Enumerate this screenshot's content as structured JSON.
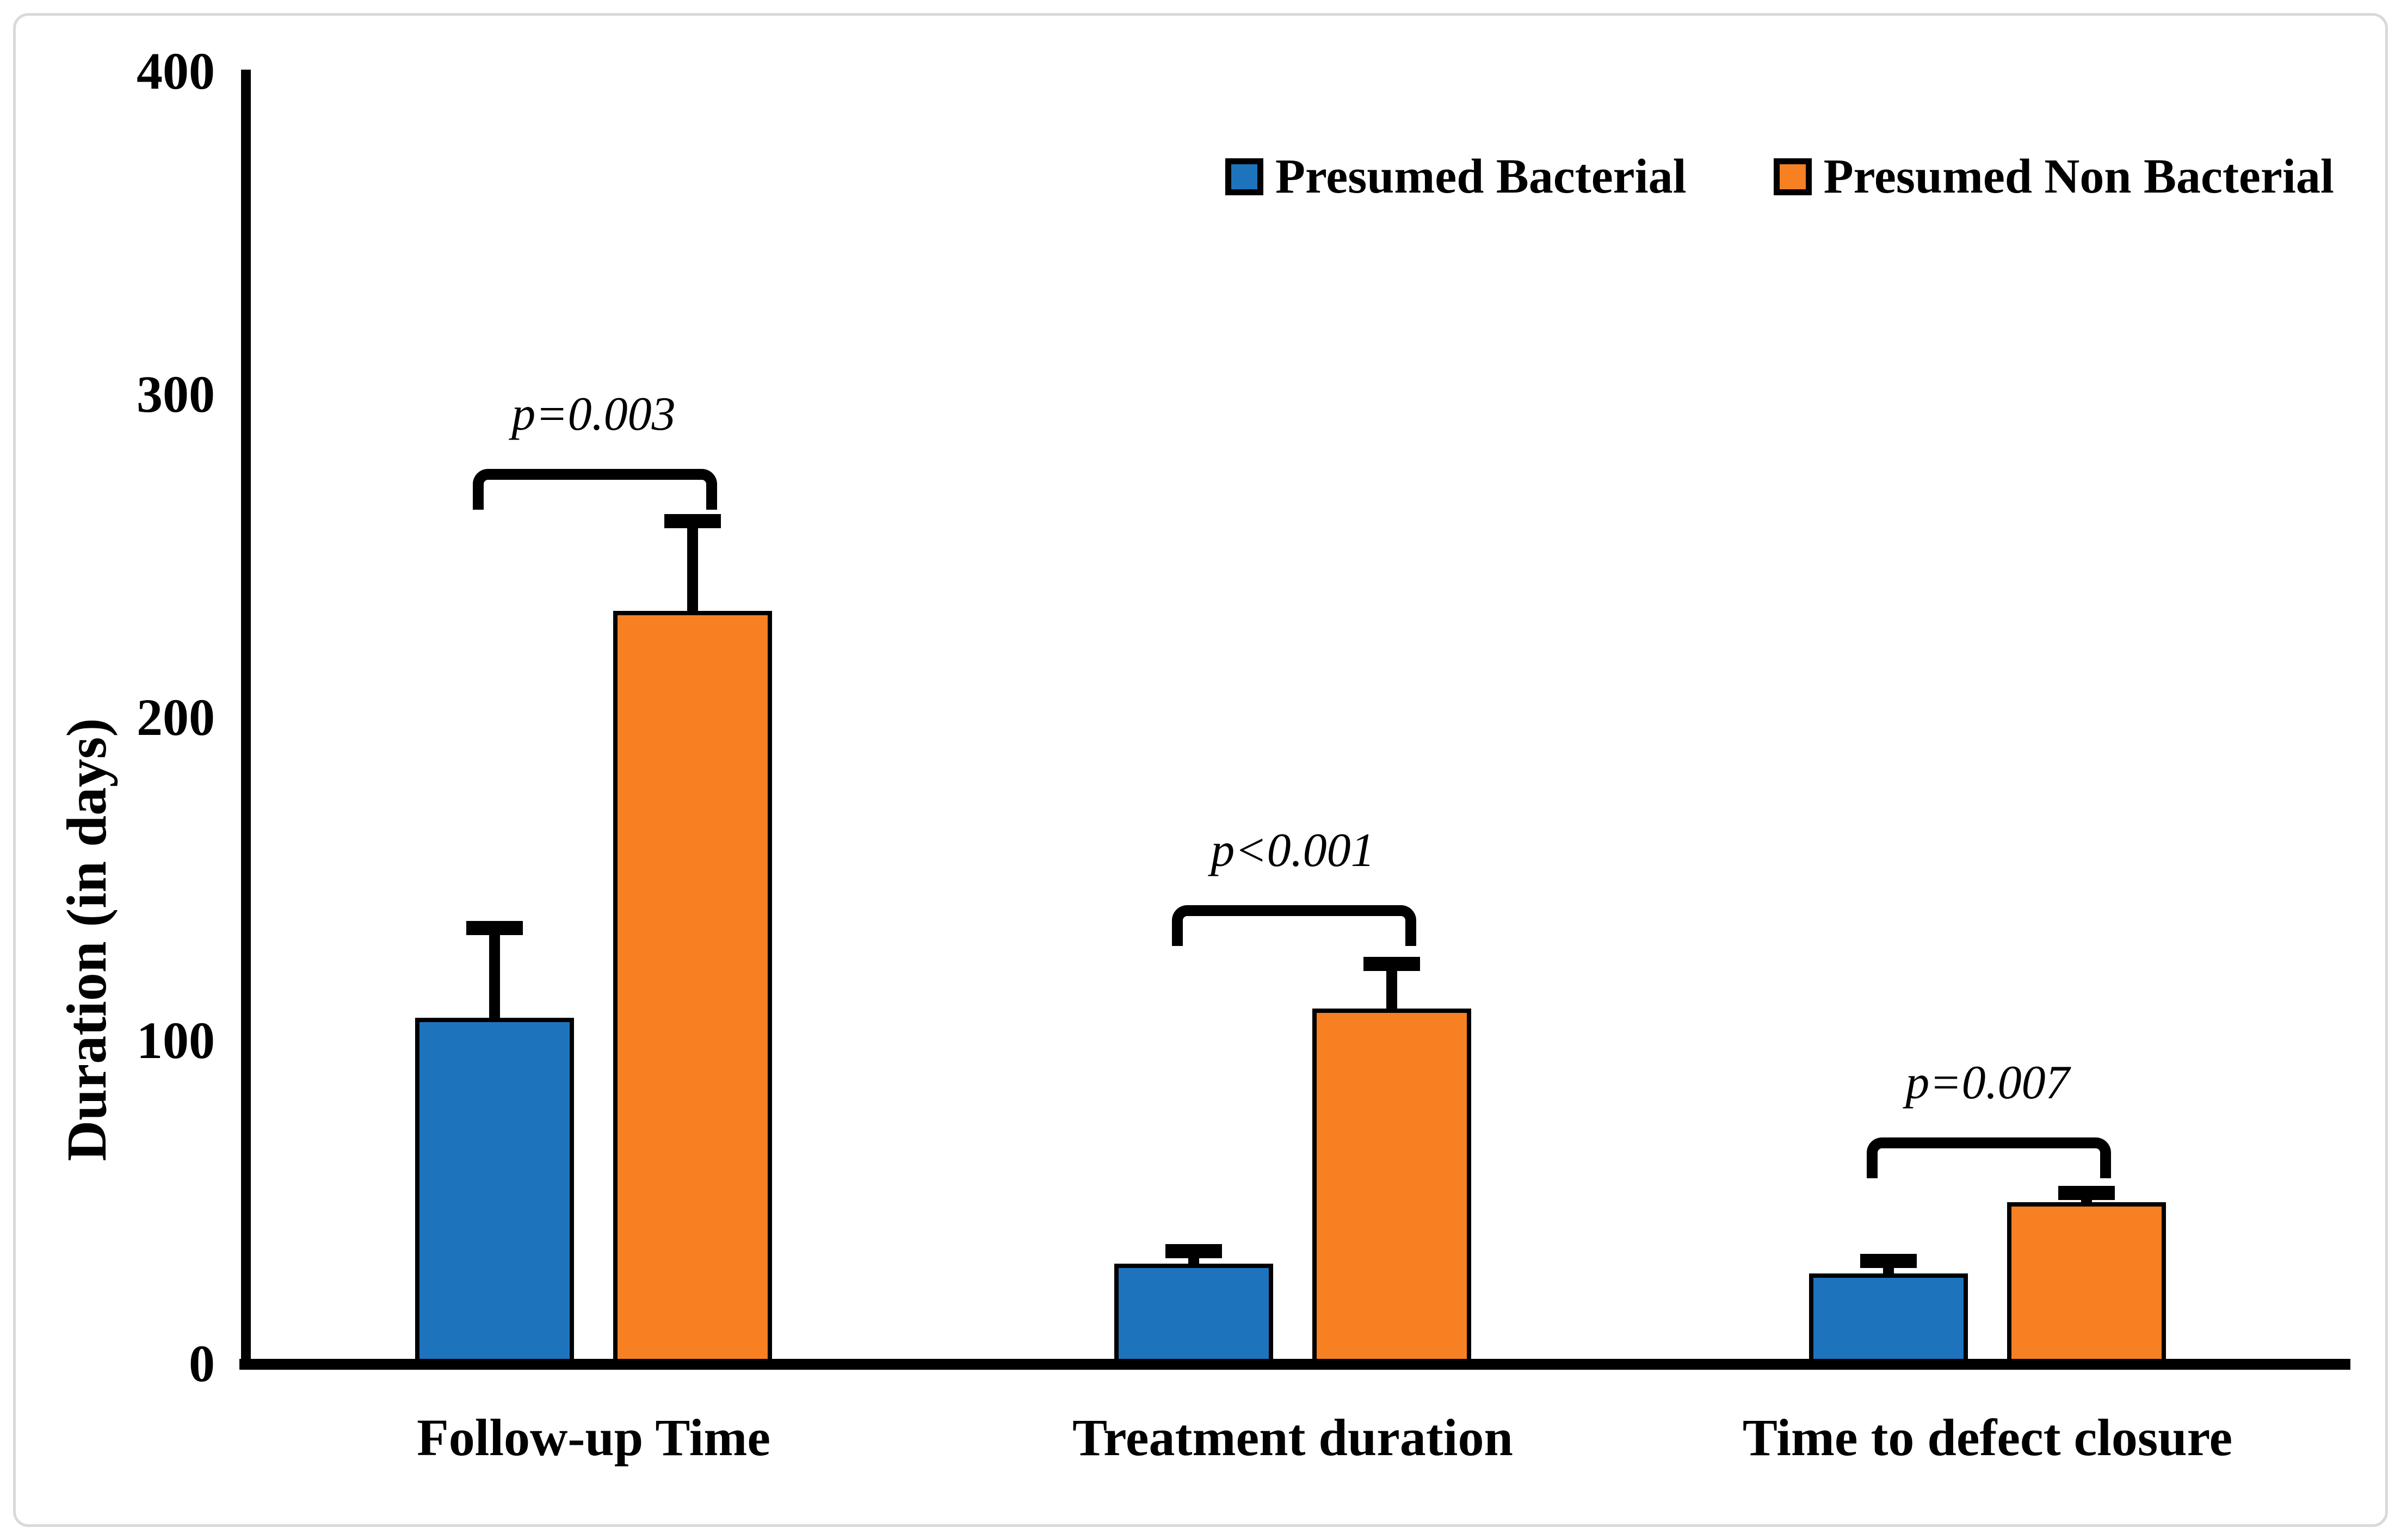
{
  "figure": {
    "background_color": "#ffffff",
    "border_color": "#d9d9d9"
  },
  "legend": {
    "items": [
      {
        "label": "Presumed Bacterial",
        "color": "#1E74BC"
      },
      {
        "label": "Presumed Non Bacterial",
        "color": "#F78022"
      }
    ]
  },
  "chart_data": {
    "type": "bar",
    "title": "",
    "xlabel": "",
    "ylabel": "Duration (in days)",
    "ylim": [
      0,
      400
    ],
    "y_ticks": [
      0,
      100,
      200,
      300,
      400
    ],
    "grid": false,
    "legend_position": "top-right",
    "categories": [
      "Follow-up Time",
      "Treatment duration",
      "Time to defect closure"
    ],
    "series": [
      {
        "name": "Presumed Bacterial",
        "color": "#1E74BC",
        "values": [
          107,
          31,
          28
        ],
        "error_plus": [
          30,
          6,
          6
        ]
      },
      {
        "name": "Presumed Non Bacterial",
        "color": "#F78022",
        "values": [
          233,
          110,
          50
        ],
        "error_plus": [
          30,
          16,
          5
        ]
      }
    ],
    "annotations": [
      {
        "category": "Follow-up Time",
        "p_label": "p=0.003",
        "bracket_y": 277
      },
      {
        "category": "Treatment duration",
        "p_label": "p<0.001",
        "bracket_y": 142
      },
      {
        "category": "Time to defect closure",
        "p_label": "p=0.007",
        "bracket_y": 70
      }
    ]
  }
}
